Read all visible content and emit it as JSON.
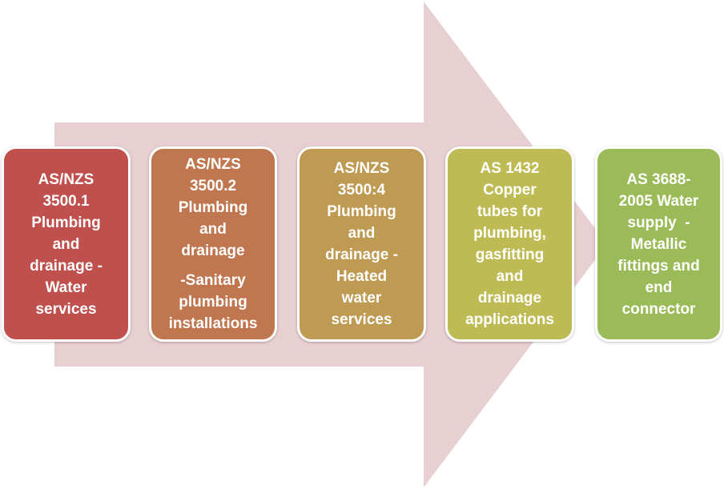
{
  "colors": {
    "arrow": "#e8cfd1",
    "box_1": "#c0504d",
    "box_2": "#c0774f",
    "box_3": "#bf9a53",
    "box_4": "#bebb54",
    "box_5": "#9bbb59",
    "text": "#ffffff"
  },
  "steps": [
    {
      "lines": [
        "AS/NZS",
        "3500.1",
        "Plumbing",
        "and",
        "drainage -",
        "Water",
        "services"
      ]
    },
    {
      "lines": [
        "AS/NZS",
        "3500.2",
        "Plumbing",
        "and",
        "drainage"
      ],
      "lines_b": [
        "-Sanitary",
        "plumbing",
        "installations"
      ]
    },
    {
      "lines": [
        "AS/NZS",
        "3500:4",
        "Plumbing",
        "and",
        "drainage -",
        "Heated",
        "water",
        "services"
      ]
    },
    {
      "lines": [
        "AS 1432",
        "Copper",
        "tubes for",
        "plumbing,",
        "gasfitting",
        "and",
        "drainage",
        "applications"
      ]
    },
    {
      "lines": [
        "AS 3688-",
        "2005 Water",
        "supply  -",
        "Metallic",
        "fittings and",
        "end",
        "connector"
      ]
    }
  ]
}
